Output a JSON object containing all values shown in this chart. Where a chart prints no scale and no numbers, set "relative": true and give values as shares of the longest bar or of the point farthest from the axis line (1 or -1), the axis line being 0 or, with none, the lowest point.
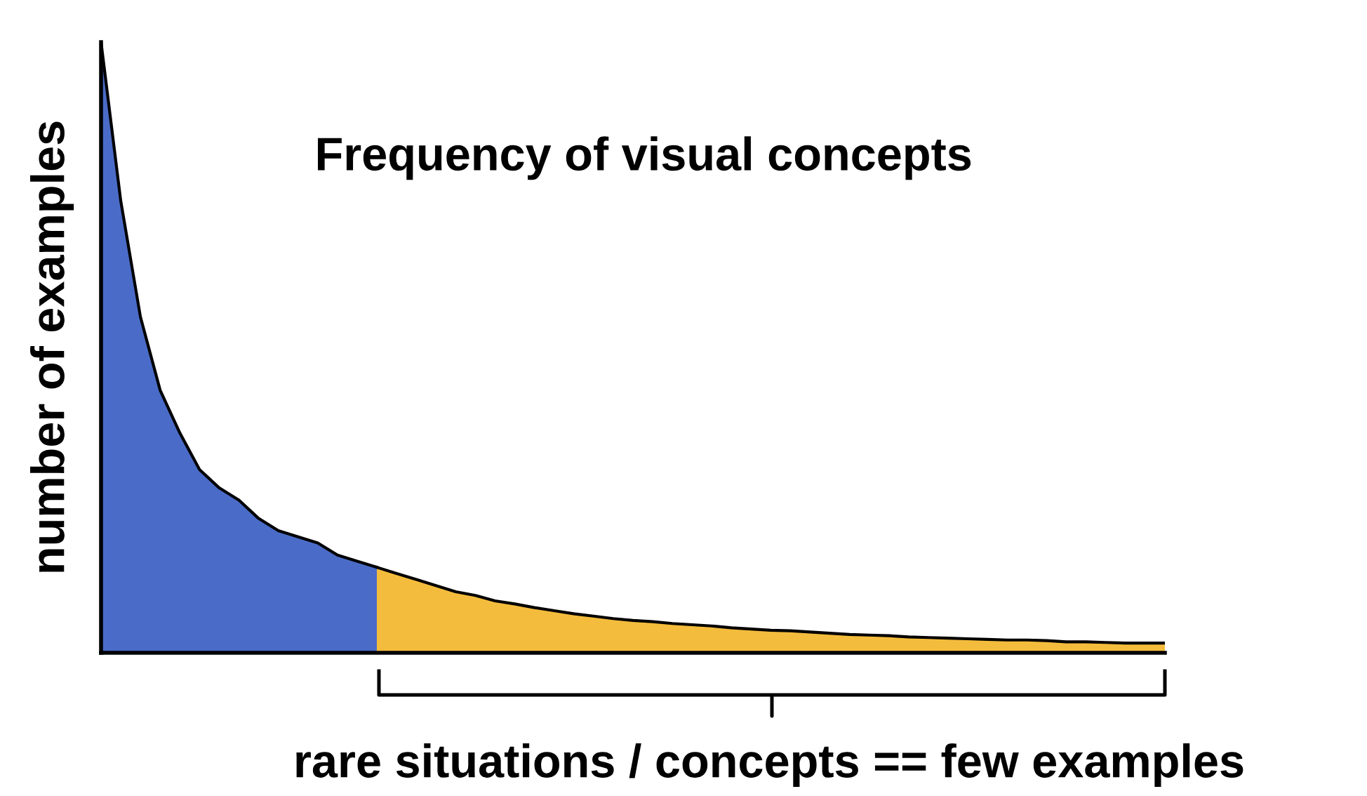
{
  "chart_data": {
    "type": "area",
    "relative": true,
    "title": "Frequency of visual concepts",
    "ylabel": "number of examples",
    "annotations": [
      "rare situations / concepts == few examples"
    ],
    "categories": [
      null,
      null,
      null,
      null,
      null,
      null,
      null,
      null,
      null,
      null,
      null,
      null,
      null,
      null,
      null,
      null,
      null,
      null,
      null,
      null,
      null,
      null,
      null,
      null,
      null,
      null,
      null,
      null,
      null,
      null,
      null,
      null,
      null,
      null,
      null,
      null,
      null,
      null,
      null,
      null,
      null,
      null,
      null,
      null,
      null,
      null,
      null,
      null,
      null,
      null,
      null,
      null,
      null,
      null,
      null
    ],
    "series": [
      {
        "color": "#4a6cc8",
        "values": [
          1,
          0.74,
          0.55,
          0.43,
          0.36,
          0.3,
          0.27,
          0.25,
          0.22,
          0.2,
          0.19,
          0.18,
          0.16,
          0.15,
          0.14,
          null,
          null,
          null,
          null,
          null,
          null,
          null,
          null,
          null,
          null,
          null,
          null,
          null,
          null,
          null,
          null,
          null,
          null,
          null,
          null,
          null,
          null,
          null,
          null,
          null,
          null,
          null,
          null,
          null,
          null,
          null,
          null,
          null,
          null,
          null,
          null,
          null,
          null,
          null,
          null
        ]
      },
      {
        "color": "#f4bc3c",
        "values": [
          null,
          null,
          null,
          null,
          null,
          null,
          null,
          null,
          null,
          null,
          null,
          null,
          null,
          null,
          0.14,
          0.13,
          0.12,
          0.11,
          0.1,
          0.094,
          0.085,
          0.08,
          0.074,
          0.069,
          0.064,
          0.06,
          0.056,
          0.053,
          0.051,
          0.048,
          0.046,
          0.044,
          0.041,
          0.039,
          0.037,
          0.036,
          0.034,
          0.032,
          0.03,
          0.029,
          0.028,
          0.026,
          0.025,
          0.024,
          0.023,
          0.022,
          0.021,
          0.021,
          0.02,
          0.018,
          0.018,
          0.017,
          0.016,
          0.016,
          0.016
        ]
      }
    ],
    "grid": false,
    "legend": false
  }
}
